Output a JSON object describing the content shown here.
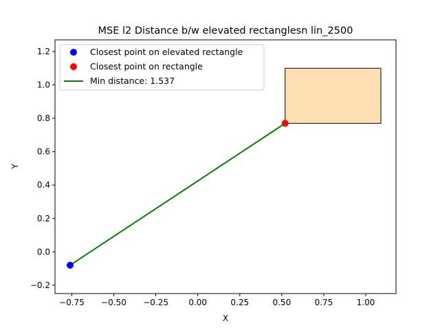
{
  "chart_data": {
    "type": "scatter",
    "title": "MSE l2 Distance b/w elevated rectanglesn lin_2500",
    "xlabel": "X",
    "ylabel": "Y",
    "xlim": [
      -0.85,
      1.18
    ],
    "ylim": [
      -0.25,
      1.27
    ],
    "xticks": [
      -0.75,
      -0.5,
      -0.25,
      0.0,
      0.25,
      0.5,
      0.75,
      1.0
    ],
    "xtick_labels": [
      "−0.75",
      "−0.50",
      "−0.25",
      "0.00",
      "0.25",
      "0.50",
      "0.75",
      "1.00"
    ],
    "yticks": [
      -0.2,
      0.0,
      0.2,
      0.4,
      0.6,
      0.8,
      1.0,
      1.2
    ],
    "ytick_labels": [
      "−0.2",
      "0.0",
      "0.2",
      "0.4",
      "0.6",
      "0.8",
      "1.0",
      "1.2"
    ],
    "grid": false,
    "legend_position": "top-left",
    "rectangle": {
      "x0": 0.52,
      "x1": 1.09,
      "y0": 0.77,
      "y1": 1.1,
      "fill": "#ffe0b2",
      "edge": "#000000"
    },
    "points": [
      {
        "name": "Closest point on elevated rectangle",
        "x": -0.76,
        "y": -0.08,
        "color": "#0000ff"
      },
      {
        "name": "Closest point on rectangle",
        "x": 0.52,
        "y": 0.77,
        "color": "#ff0000"
      }
    ],
    "line": {
      "name": "Min distance: 1.537",
      "x": [
        -0.76,
        0.52
      ],
      "y": [
        -0.08,
        0.77
      ],
      "color": "#008000"
    }
  }
}
